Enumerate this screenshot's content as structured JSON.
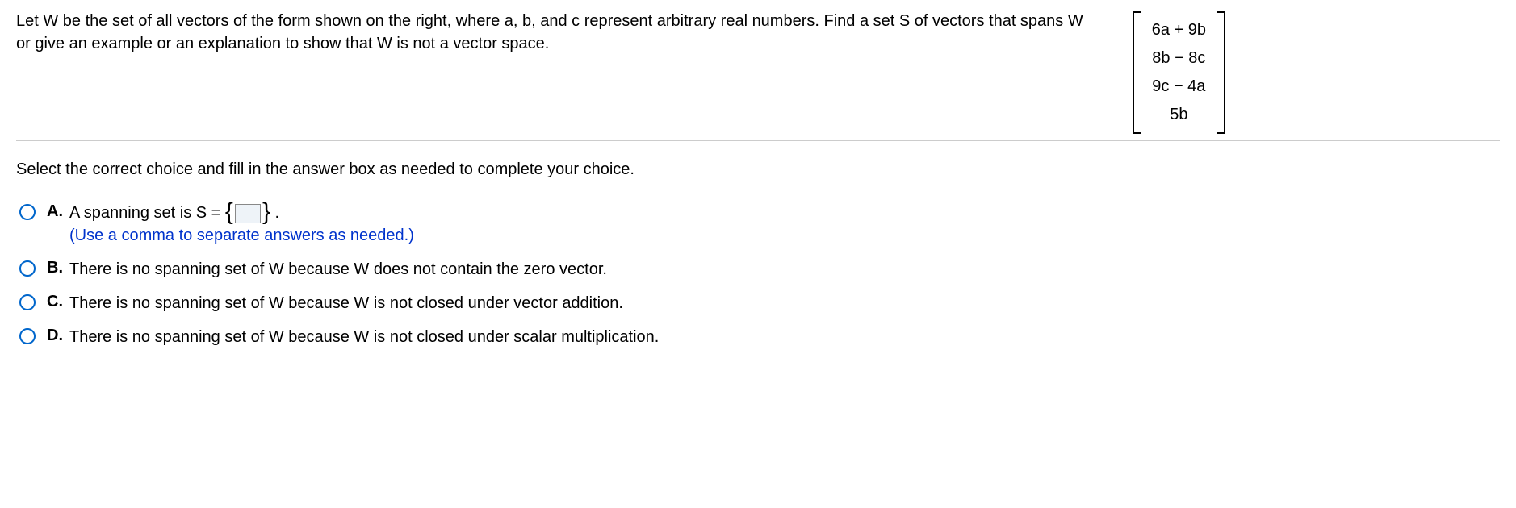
{
  "question": {
    "text": "Let W be the set of all vectors of the form shown on the right, where a, b, and c represent arbitrary real numbers. Find a set S of vectors that spans W or give an example or an explanation to show that W is not a vector space.",
    "vector_entries": [
      "6a + 9b",
      "8b − 8c",
      "9c − 4a",
      "5b"
    ]
  },
  "instruction": "Select the correct choice and fill in the answer box as needed to complete your choice.",
  "choices": {
    "A": {
      "letter": "A.",
      "prefix": "A spanning set is S = ",
      "suffix": " .",
      "hint": "(Use a comma to separate answers as needed.)"
    },
    "B": {
      "letter": "B.",
      "text": "There is no spanning set of W because W does not contain the zero vector."
    },
    "C": {
      "letter": "C.",
      "text": "There is no spanning set of W because W is not closed under vector addition."
    },
    "D": {
      "letter": "D.",
      "text": "There is no spanning set of W because W is not closed under scalar multiplication."
    }
  }
}
